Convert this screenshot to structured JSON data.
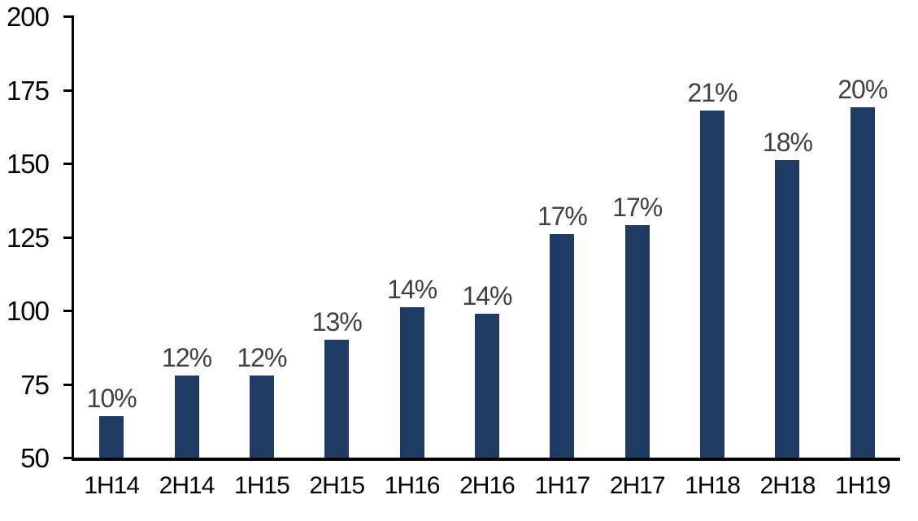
{
  "chart_data": {
    "type": "bar",
    "title": "",
    "xlabel": "",
    "ylabel": "",
    "categories": [
      "1H14",
      "2H14",
      "1H15",
      "2H15",
      "1H16",
      "2H16",
      "1H17",
      "2H17",
      "1H18",
      "2H18",
      "1H19"
    ],
    "values": [
      64,
      78,
      78,
      90,
      101,
      99,
      126,
      129,
      168,
      151,
      169
    ],
    "data_labels": [
      "10%",
      "12%",
      "12%",
      "13%",
      "14%",
      "14%",
      "17%",
      "17%",
      "21%",
      "18%",
      "20%"
    ],
    "ylim": [
      50,
      200
    ],
    "yticks": [
      50,
      75,
      100,
      125,
      150,
      175,
      200
    ],
    "grid": false,
    "legend": false,
    "colors": {
      "bar": "#203B63",
      "data_label": "#404040",
      "axis_line": "#000000",
      "tick_label": "#000000",
      "background": "#ffffff"
    }
  }
}
